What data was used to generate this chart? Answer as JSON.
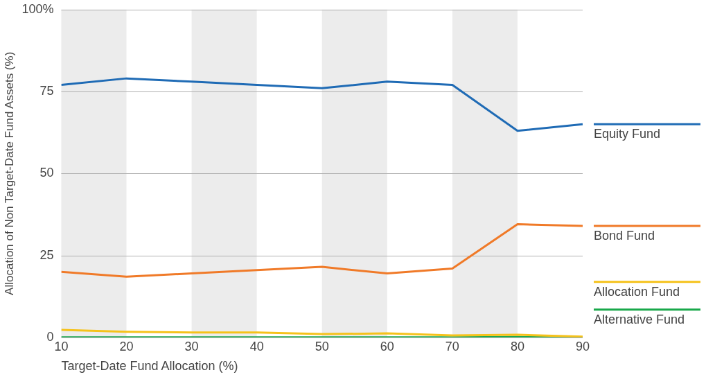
{
  "chart_data": {
    "type": "line",
    "xlabel": "Target-Date Fund Allocation (%)",
    "ylabel": "Allocation of Non Target-Date Fund Assets (%)",
    "x": [
      10,
      20,
      30,
      40,
      50,
      60,
      70,
      80,
      90
    ],
    "series": [
      {
        "name": "Equity Fund",
        "color": "#1f6bb5",
        "values": [
          77,
          79,
          78,
          77,
          76,
          78,
          77,
          63,
          65
        ]
      },
      {
        "name": "Bond Fund",
        "color": "#f07a28",
        "values": [
          20,
          18.5,
          19.5,
          20.5,
          21.5,
          19.5,
          21,
          34.5,
          34
        ]
      },
      {
        "name": "Allocation Fund",
        "color": "#f5c21b",
        "values": [
          2.3,
          1.7,
          1.5,
          1.5,
          1,
          1.2,
          0.6,
          0.8,
          0.2
        ]
      },
      {
        "name": "Alternative Fund",
        "color": "#19a84a",
        "values": [
          0,
          0,
          0,
          0,
          0,
          0,
          0,
          0.1,
          0
        ]
      }
    ],
    "xlim": [
      10,
      90
    ],
    "xticks": [
      10,
      20,
      30,
      40,
      50,
      60,
      70,
      80,
      90
    ],
    "ylim": [
      0,
      100
    ],
    "yticks": [
      0,
      25,
      50,
      75,
      {
        "value": 100,
        "label": "100%"
      }
    ],
    "bands": [
      {
        "axis": "x",
        "from": 10,
        "to": 20,
        "color": "#ececec"
      },
      {
        "axis": "x",
        "from": 30,
        "to": 40,
        "color": "#ececec"
      },
      {
        "axis": "x",
        "from": 50,
        "to": 60,
        "color": "#ececec"
      },
      {
        "axis": "x",
        "from": 70,
        "to": 80,
        "color": "#ececec"
      }
    ],
    "grid": "y",
    "legend": "right",
    "marker": "none",
    "line_style": "solid"
  }
}
